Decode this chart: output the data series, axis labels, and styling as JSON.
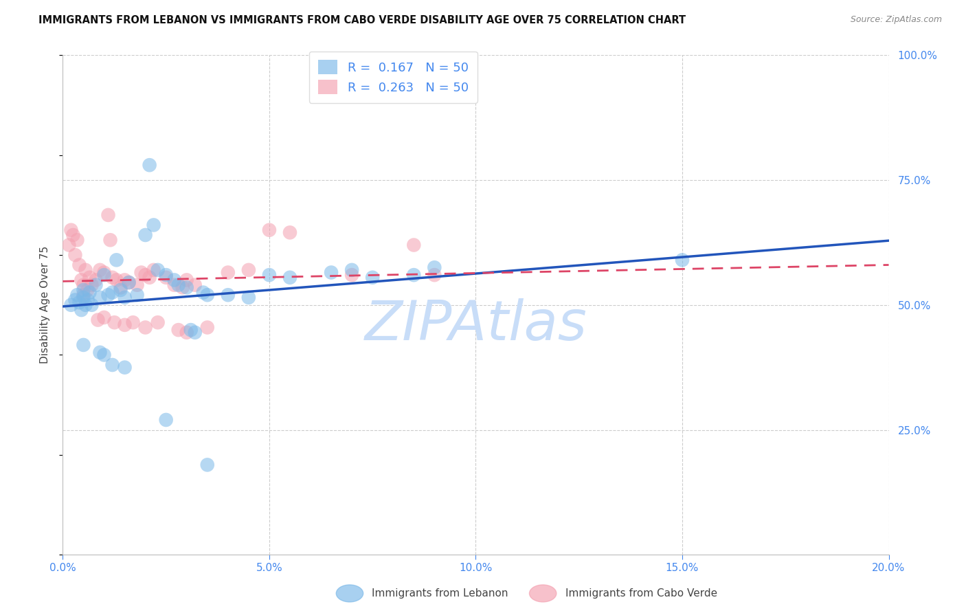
{
  "title": "IMMIGRANTS FROM LEBANON VS IMMIGRANTS FROM CABO VERDE DISABILITY AGE OVER 75 CORRELATION CHART",
  "source": "Source: ZipAtlas.com",
  "ylabel": "Disability Age Over 75",
  "xlabel_vals": [
    0.0,
    5.0,
    10.0,
    15.0,
    20.0
  ],
  "ylabel_vals_right": [
    100.0,
    75.0,
    50.0,
    25.0
  ],
  "xlim": [
    0.0,
    20.0
  ],
  "ylim": [
    0.0,
    100.0
  ],
  "lebanon_R": 0.167,
  "lebanon_N": 50,
  "caboverde_R": 0.263,
  "caboverde_N": 50,
  "lebanon_color": "#7ab8e8",
  "caboverde_color": "#f4a0b0",
  "lebanon_scatter": [
    [
      0.2,
      50.0
    ],
    [
      0.3,
      51.0
    ],
    [
      0.35,
      52.0
    ],
    [
      0.4,
      50.5
    ],
    [
      0.45,
      49.0
    ],
    [
      0.5,
      51.5
    ],
    [
      0.5,
      53.0
    ],
    [
      0.55,
      50.0
    ],
    [
      0.6,
      51.0
    ],
    [
      0.65,
      52.5
    ],
    [
      0.7,
      50.0
    ],
    [
      0.8,
      54.0
    ],
    [
      0.9,
      51.5
    ],
    [
      1.0,
      56.0
    ],
    [
      1.1,
      52.0
    ],
    [
      1.2,
      52.5
    ],
    [
      1.3,
      59.0
    ],
    [
      1.4,
      53.0
    ],
    [
      1.5,
      51.5
    ],
    [
      1.6,
      54.5
    ],
    [
      1.8,
      52.0
    ],
    [
      2.0,
      64.0
    ],
    [
      2.1,
      78.0
    ],
    [
      2.2,
      66.0
    ],
    [
      2.3,
      57.0
    ],
    [
      2.5,
      56.0
    ],
    [
      2.7,
      55.0
    ],
    [
      2.8,
      54.0
    ],
    [
      3.0,
      53.5
    ],
    [
      3.1,
      45.0
    ],
    [
      3.2,
      44.5
    ],
    [
      3.4,
      52.5
    ],
    [
      3.5,
      52.0
    ],
    [
      4.0,
      52.0
    ],
    [
      4.5,
      51.5
    ],
    [
      5.0,
      56.0
    ],
    [
      5.5,
      55.5
    ],
    [
      6.5,
      56.5
    ],
    [
      7.0,
      57.0
    ],
    [
      7.5,
      55.5
    ],
    [
      8.5,
      56.0
    ],
    [
      9.0,
      57.5
    ],
    [
      15.0,
      59.0
    ],
    [
      0.5,
      42.0
    ],
    [
      0.9,
      40.5
    ],
    [
      1.0,
      40.0
    ],
    [
      1.2,
      38.0
    ],
    [
      1.5,
      37.5
    ],
    [
      2.5,
      27.0
    ],
    [
      3.5,
      18.0
    ]
  ],
  "caboverde_scatter": [
    [
      0.15,
      62.0
    ],
    [
      0.2,
      65.0
    ],
    [
      0.25,
      64.0
    ],
    [
      0.3,
      60.0
    ],
    [
      0.35,
      63.0
    ],
    [
      0.4,
      58.0
    ],
    [
      0.45,
      55.0
    ],
    [
      0.5,
      54.0
    ],
    [
      0.5,
      52.0
    ],
    [
      0.55,
      57.0
    ],
    [
      0.6,
      53.0
    ],
    [
      0.65,
      55.5
    ],
    [
      0.7,
      54.0
    ],
    [
      0.8,
      55.0
    ],
    [
      0.85,
      47.0
    ],
    [
      0.9,
      57.0
    ],
    [
      1.0,
      56.5
    ],
    [
      1.0,
      47.5
    ],
    [
      1.1,
      68.0
    ],
    [
      1.15,
      63.0
    ],
    [
      1.2,
      55.5
    ],
    [
      1.25,
      46.5
    ],
    [
      1.3,
      55.0
    ],
    [
      1.4,
      53.5
    ],
    [
      1.5,
      55.0
    ],
    [
      1.5,
      46.0
    ],
    [
      1.6,
      54.5
    ],
    [
      1.7,
      46.5
    ],
    [
      1.8,
      54.0
    ],
    [
      1.9,
      56.5
    ],
    [
      2.0,
      56.0
    ],
    [
      2.0,
      45.5
    ],
    [
      2.1,
      55.5
    ],
    [
      2.2,
      57.0
    ],
    [
      2.3,
      46.5
    ],
    [
      2.5,
      55.5
    ],
    [
      2.7,
      54.0
    ],
    [
      2.8,
      45.0
    ],
    [
      2.9,
      53.5
    ],
    [
      3.0,
      44.5
    ],
    [
      3.0,
      55.0
    ],
    [
      3.2,
      54.0
    ],
    [
      3.5,
      45.5
    ],
    [
      4.0,
      56.5
    ],
    [
      4.5,
      57.0
    ],
    [
      5.0,
      65.0
    ],
    [
      5.5,
      64.5
    ],
    [
      7.0,
      56.0
    ],
    [
      8.5,
      62.0
    ],
    [
      9.0,
      56.0
    ]
  ],
  "background_color": "#ffffff",
  "grid_color": "#cccccc",
  "axis_color": "#4488ee",
  "title_color": "#111111",
  "watermark_color": "#c8ddf8",
  "legend_label_lebanon": "Immigrants from Lebanon",
  "legend_label_caboverde": "Immigrants from Cabo Verde"
}
